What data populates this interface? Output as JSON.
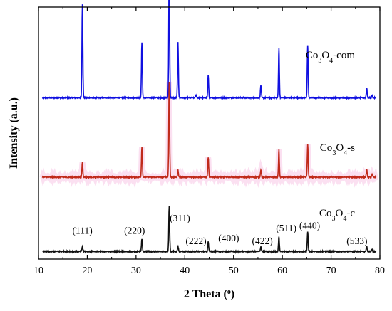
{
  "chart_data": {
    "type": "line",
    "title": "",
    "xlabel": "2 Theta (°)",
    "xlabel_parts": {
      "main": "2 Theta (",
      "sup": "o",
      "end": ")"
    },
    "ylabel": "Intensity (a.u.)",
    "xlim": [
      10,
      80
    ],
    "xticks": [
      10,
      20,
      30,
      40,
      50,
      60,
      70,
      80
    ],
    "yticks_shown": false,
    "grid": false,
    "legend": "none",
    "series": [
      {
        "name": "Co3O4-com",
        "label_parts": [
          "Co",
          "3",
          "O",
          "4",
          "-com"
        ],
        "color": "#1010e0",
        "baseline": 0.64,
        "peaks": [
          {
            "x": 19.0,
            "h": 0.37
          },
          {
            "x": 31.2,
            "h": 0.22
          },
          {
            "x": 36.8,
            "h": 0.52
          },
          {
            "x": 38.6,
            "h": 0.22
          },
          {
            "x": 42.3,
            "h": 0.01
          },
          {
            "x": 44.8,
            "h": 0.09
          },
          {
            "x": 55.6,
            "h": 0.05
          },
          {
            "x": 59.3,
            "h": 0.2
          },
          {
            "x": 65.2,
            "h": 0.21
          },
          {
            "x": 77.3,
            "h": 0.04
          },
          {
            "x": 78.4,
            "h": 0.01
          }
        ]
      },
      {
        "name": "Co3O4-s",
        "label_parts": [
          "Co",
          "3",
          "O",
          "4",
          "-s"
        ],
        "color": "#c02a1a",
        "halo": "#f7c6e6",
        "baseline": 0.325,
        "peaks": [
          {
            "x": 19.0,
            "h": 0.06
          },
          {
            "x": 31.2,
            "h": 0.12
          },
          {
            "x": 36.8,
            "h": 0.38
          },
          {
            "x": 38.6,
            "h": 0.03
          },
          {
            "x": 44.8,
            "h": 0.08
          },
          {
            "x": 55.6,
            "h": 0.03
          },
          {
            "x": 59.3,
            "h": 0.11
          },
          {
            "x": 65.2,
            "h": 0.13
          },
          {
            "x": 77.3,
            "h": 0.03
          },
          {
            "x": 78.4,
            "h": 0.01
          }
        ]
      },
      {
        "name": "Co3O4-c",
        "label_parts": [
          "Co",
          "3",
          "O",
          "4",
          "-c"
        ],
        "color": "#111111",
        "baseline": 0.03,
        "peaks": [
          {
            "x": 19.0,
            "h": 0.02
          },
          {
            "x": 31.2,
            "h": 0.05
          },
          {
            "x": 36.8,
            "h": 0.18
          },
          {
            "x": 38.6,
            "h": 0.02
          },
          {
            "x": 44.8,
            "h": 0.04
          },
          {
            "x": 55.6,
            "h": 0.02
          },
          {
            "x": 59.3,
            "h": 0.06
          },
          {
            "x": 65.2,
            "h": 0.08
          },
          {
            "x": 77.3,
            "h": 0.02
          },
          {
            "x": 78.4,
            "h": 0.01
          }
        ]
      }
    ],
    "annotations": [
      {
        "text": "(111)",
        "x": 19.0,
        "y": 0.1
      },
      {
        "text": "(220)",
        "x": 29.7,
        "y": 0.1
      },
      {
        "text": "(311)",
        "x": 39.0,
        "y": 0.15
      },
      {
        "text": "(222)",
        "x": 42.3,
        "y": 0.06
      },
      {
        "text": "(400)",
        "x": 49.0,
        "y": 0.07
      },
      {
        "text": "(422)",
        "x": 55.9,
        "y": 0.06
      },
      {
        "text": "(511)",
        "x": 60.8,
        "y": 0.11
      },
      {
        "text": "(440)",
        "x": 65.6,
        "y": 0.12
      },
      {
        "text": "(533)",
        "x": 75.3,
        "y": 0.06
      }
    ]
  }
}
